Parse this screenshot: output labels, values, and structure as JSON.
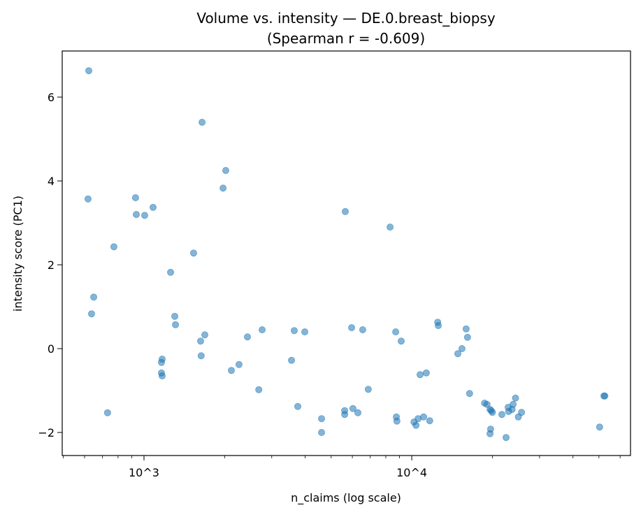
{
  "chart_data": {
    "type": "scatter",
    "title": "Volume vs. intensity — DE.0.breast_biopsy",
    "subtitle": "(Spearman r = -0.609)",
    "xlabel": "n_claims (log scale)",
    "ylabel": "intensity score (PC1)",
    "xscale": "log",
    "xlim": [
      495,
      65600
    ],
    "ylim": [
      -2.55,
      7.1
    ],
    "xticks": [
      {
        "value": 1000,
        "label": "10^3"
      },
      {
        "value": 10000,
        "label": "10^4"
      }
    ],
    "yticks": [
      {
        "value": 6,
        "label": "6"
      },
      {
        "value": 4,
        "label": "4"
      },
      {
        "value": 2,
        "label": "2"
      },
      {
        "value": 0,
        "label": "0"
      },
      {
        "value": -2,
        "label": "−2"
      }
    ],
    "grid": false,
    "marker_color": "#1f77b4",
    "marker_alpha": 0.55,
    "points": [
      [
        622,
        6.63
      ],
      [
        618,
        3.57
      ],
      [
        649,
        1.23
      ],
      [
        637,
        0.83
      ],
      [
        772,
        2.43
      ],
      [
        731,
        -1.53
      ],
      [
        930,
        3.6
      ],
      [
        936,
        3.2
      ],
      [
        1006,
        3.18
      ],
      [
        1081,
        3.37
      ],
      [
        1257,
        1.82
      ],
      [
        1303,
        0.77
      ],
      [
        1311,
        0.57
      ],
      [
        1169,
        -0.25
      ],
      [
        1162,
        -0.33
      ],
      [
        1162,
        -0.58
      ],
      [
        1169,
        -0.65
      ],
      [
        1532,
        2.28
      ],
      [
        1648,
        5.4
      ],
      [
        2020,
        4.25
      ],
      [
        1974,
        3.83
      ],
      [
        1687,
        0.33
      ],
      [
        1627,
        0.18
      ],
      [
        1635,
        -0.17
      ],
      [
        2120,
        -0.52
      ],
      [
        2264,
        -0.38
      ],
      [
        2434,
        0.28
      ],
      [
        2762,
        0.45
      ],
      [
        2683,
        -0.98
      ],
      [
        3556,
        -0.28
      ],
      [
        3640,
        0.43
      ],
      [
        3985,
        0.4
      ],
      [
        3752,
        -1.38
      ],
      [
        4604,
        -1.67
      ],
      [
        4604,
        -2.0
      ],
      [
        5646,
        3.27
      ],
      [
        5616,
        -1.48
      ],
      [
        5616,
        -1.57
      ],
      [
        5962,
        0.5
      ],
      [
        6030,
        -1.43
      ],
      [
        6292,
        -1.53
      ],
      [
        6558,
        0.45
      ],
      [
        6880,
        -0.97
      ],
      [
        8300,
        2.9
      ],
      [
        8710,
        0.4
      ],
      [
        9130,
        0.18
      ],
      [
        8760,
        -1.63
      ],
      [
        8800,
        -1.73
      ],
      [
        10190,
        -1.75
      ],
      [
        10370,
        -1.83
      ],
      [
        10560,
        -1.67
      ],
      [
        10740,
        -0.62
      ],
      [
        11070,
        -1.63
      ],
      [
        11330,
        -0.58
      ],
      [
        11670,
        -1.72
      ],
      [
        12500,
        0.63
      ],
      [
        12560,
        0.55
      ],
      [
        14860,
        -0.12
      ],
      [
        15400,
        0.0
      ],
      [
        15960,
        0.47
      ],
      [
        16150,
        0.27
      ],
      [
        16440,
        -1.07
      ],
      [
        18700,
        -1.3
      ],
      [
        19100,
        -1.33
      ],
      [
        19600,
        -1.45
      ],
      [
        19800,
        -1.48
      ],
      [
        20000,
        -1.52
      ],
      [
        19700,
        -1.92
      ],
      [
        19600,
        -2.03
      ],
      [
        21700,
        -1.57
      ],
      [
        22500,
        -2.12
      ],
      [
        22900,
        -1.4
      ],
      [
        23000,
        -1.5
      ],
      [
        23700,
        -1.45
      ],
      [
        23900,
        -1.33
      ],
      [
        24400,
        -1.18
      ],
      [
        25000,
        -1.63
      ],
      [
        25700,
        -1.52
      ],
      [
        50300,
        -1.87
      ],
      [
        52200,
        -1.13
      ],
      [
        52600,
        -1.13
      ]
    ]
  }
}
